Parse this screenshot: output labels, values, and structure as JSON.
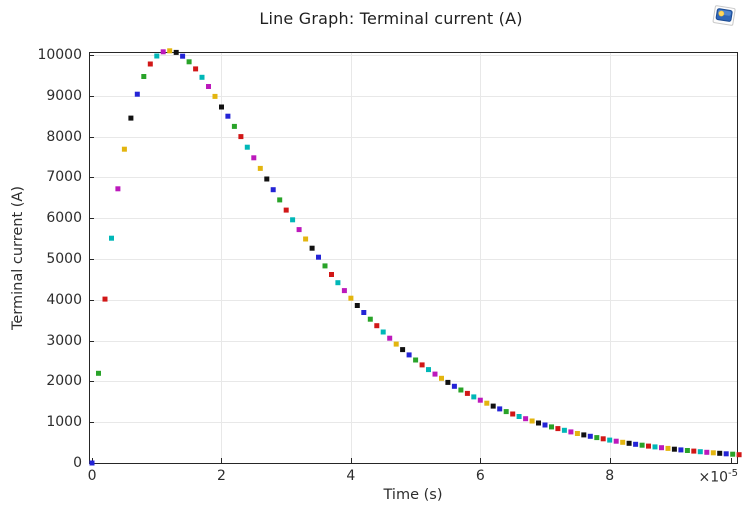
{
  "title": "Line Graph: Terminal current (A)",
  "window_icon": "plot-window-icon",
  "colors": {
    "background": "#ffffff",
    "grid": "#e8e8e8",
    "frame": "#262626",
    "text": "#2d2d2d"
  },
  "chart_data": {
    "type": "scatter",
    "marker": "square",
    "marker_size": 5,
    "title": "Line Graph: Terminal current (A)",
    "xlabel": "Time (s)",
    "ylabel": "Terminal current (A)",
    "x_exponent": {
      "base": "×10",
      "power": "-5"
    },
    "x_unit_scale": 1e-05,
    "grid": true,
    "legend": "none",
    "xlim": [
      -0.047,
      9.967
    ],
    "ylim": [
      0,
      10074
    ],
    "xticks": [
      0,
      2,
      4,
      6,
      8
    ],
    "yticks": [
      0,
      1000,
      2000,
      3000,
      4000,
      5000,
      6000,
      7000,
      8000,
      9000,
      10000
    ],
    "color_cycle": [
      "#2424d6",
      "#29a329",
      "#d11717",
      "#00b7b7",
      "#bc19bc",
      "#e3b50f",
      "#111111"
    ],
    "x": [
      0.0,
      0.1,
      0.2,
      0.3,
      0.4,
      0.5,
      0.6,
      0.7,
      0.8,
      0.9,
      1.0,
      1.1,
      1.2,
      1.3,
      1.4,
      1.5,
      1.6,
      1.7,
      1.8,
      1.9,
      2.0,
      2.1,
      2.2,
      2.3,
      2.4,
      2.5,
      2.6,
      2.7,
      2.8,
      2.9,
      3.0,
      3.1,
      3.2,
      3.3,
      3.4,
      3.5,
      3.6,
      3.7,
      3.8,
      3.9,
      4.0,
      4.1,
      4.2,
      4.3,
      4.4,
      4.5,
      4.6,
      4.7,
      4.8,
      4.9,
      5.0,
      5.1,
      5.2,
      5.3,
      5.4,
      5.5,
      5.6,
      5.7,
      5.8,
      5.9,
      6.0,
      6.1,
      6.2,
      6.3,
      6.4,
      6.5,
      6.6,
      6.7,
      6.8,
      6.9,
      7.0,
      7.1,
      7.2,
      7.3,
      7.4,
      7.5,
      7.6,
      7.7,
      7.8,
      7.9,
      8.0,
      8.1,
      8.2,
      8.3,
      8.4,
      8.5,
      8.6,
      8.7,
      8.8,
      8.9,
      9.0,
      9.1,
      9.2,
      9.3,
      9.4,
      9.5,
      9.6,
      9.7,
      9.8,
      9.9,
      10.0
    ],
    "y": [
      0,
      2198,
      4017,
      5510,
      6722,
      7692,
      8455,
      9040,
      9474,
      9779,
      9975,
      10078,
      10103,
      10064,
      9971,
      9833,
      9659,
      9455,
      9229,
      8985,
      8727,
      8500,
      8250,
      8000,
      7740,
      7480,
      7220,
      6960,
      6700,
      6450,
      6200,
      5960,
      5720,
      5490,
      5265,
      5045,
      4830,
      4620,
      4420,
      4225,
      4040,
      3860,
      3690,
      3525,
      3365,
      3210,
      3060,
      2915,
      2780,
      2650,
      2525,
      2405,
      2290,
      2180,
      2075,
      1975,
      1880,
      1790,
      1705,
      1620,
      1540,
      1465,
      1395,
      1325,
      1260,
      1200,
      1140,
      1085,
      1030,
      980,
      932,
      886,
      843,
      801,
      762,
      724,
      689,
      655,
      622,
      592,
      562,
      535,
      508,
      483,
      459,
      437,
      415,
      395,
      375,
      357,
      339,
      322,
      306,
      291,
      277,
      263,
      250,
      238,
      226,
      215,
      204
    ]
  }
}
